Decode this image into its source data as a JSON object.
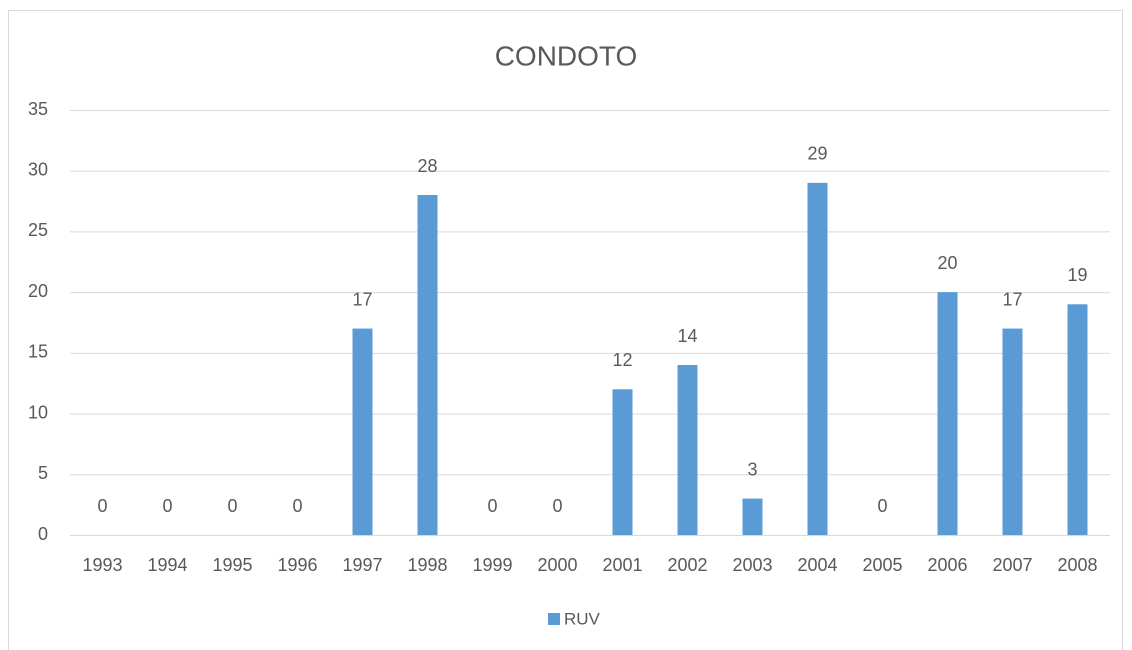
{
  "chart_data": {
    "type": "bar",
    "title": "CONDOTO",
    "categories": [
      "1993",
      "1994",
      "1995",
      "1996",
      "1997",
      "1998",
      "1999",
      "2000",
      "2001",
      "2002",
      "2003",
      "2004",
      "2005",
      "2006",
      "2007",
      "2008"
    ],
    "series": [
      {
        "name": "RUV",
        "color": "#5b9bd5",
        "values": [
          0,
          0,
          0,
          0,
          17,
          28,
          0,
          0,
          12,
          14,
          3,
          29,
          0,
          20,
          17,
          19
        ]
      }
    ],
    "ylim": [
      0,
      35
    ],
    "yticks": [
      0,
      5,
      10,
      15,
      20,
      25,
      30,
      35
    ],
    "grid": true,
    "legend": "bottom",
    "data_labels": true
  }
}
